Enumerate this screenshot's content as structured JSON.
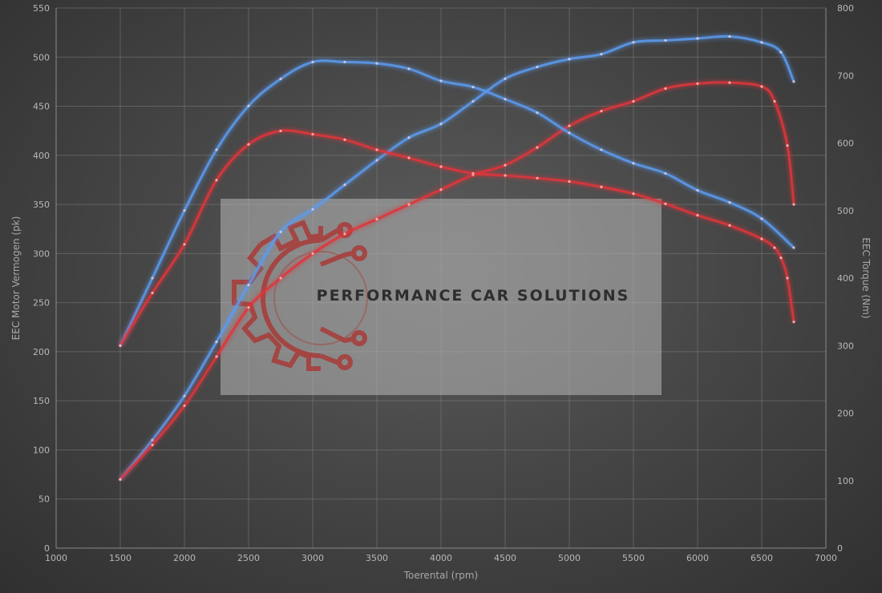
{
  "chart_data": {
    "type": "line",
    "xlabel": "Toerental (rpm)",
    "ylabel": "EEC Motor Vermogen (pk)",
    "y2label": "EEC Torque (Nm)",
    "xlim": [
      1000,
      7000
    ],
    "ylim": [
      0,
      550
    ],
    "y2lim": [
      0,
      800
    ],
    "x_ticks": [
      1000,
      1500,
      2000,
      2500,
      3000,
      3500,
      4000,
      4500,
      5000,
      5500,
      6000,
      6500,
      7000
    ],
    "y_ticks": [
      0,
      50,
      100,
      150,
      200,
      250,
      300,
      350,
      400,
      450,
      500,
      550
    ],
    "y2_ticks": [
      0,
      100,
      200,
      300,
      400,
      500,
      600,
      700,
      800
    ],
    "grid": true,
    "colors": {
      "tuned": "#5b9bf0",
      "stock": "#e0353a"
    },
    "series": [
      {
        "axis": "left",
        "color": "#5b9bf0",
        "x": [
          1500,
          1750,
          2000,
          2250,
          2500,
          2750,
          3000,
          3250,
          3500,
          3750,
          4000,
          4250,
          4500,
          4750,
          5000,
          5250,
          5500,
          5750,
          6000,
          6250,
          6500,
          6650,
          6750
        ],
        "y": [
          70,
          110,
          155,
          210,
          268,
          322,
          345,
          370,
          395,
          418,
          432,
          455,
          478,
          490,
          498,
          503,
          515,
          517,
          519,
          521,
          515,
          505,
          475
        ]
      },
      {
        "axis": "left",
        "color": "#e0353a",
        "x": [
          1500,
          1750,
          2000,
          2250,
          2500,
          2750,
          3000,
          3250,
          3500,
          3750,
          4000,
          4250,
          4500,
          4750,
          5000,
          5250,
          5500,
          5750,
          6000,
          6250,
          6500,
          6600,
          6700,
          6750
        ],
        "y": [
          70,
          105,
          145,
          195,
          245,
          275,
          300,
          320,
          335,
          350,
          365,
          380,
          390,
          408,
          430,
          445,
          455,
          468,
          473,
          474,
          470,
          455,
          410,
          350
        ]
      },
      {
        "axis": "right",
        "color": "#5b9bf0",
        "x": [
          1500,
          1750,
          2000,
          2250,
          2500,
          2750,
          3000,
          3250,
          3500,
          3750,
          4000,
          4250,
          4500,
          4750,
          5000,
          5250,
          5500,
          5750,
          6000,
          6250,
          6500,
          6750
        ],
        "y": [
          300,
          400,
          500,
          590,
          655,
          695,
          720,
          720,
          718,
          710,
          692,
          683,
          665,
          645,
          615,
          590,
          570,
          555,
          530,
          512,
          488,
          445
        ]
      },
      {
        "axis": "right",
        "color": "#e0353a",
        "x": [
          1500,
          1750,
          2000,
          2250,
          2500,
          2750,
          3000,
          3250,
          3500,
          3750,
          4000,
          4250,
          4500,
          4750,
          5000,
          5250,
          5500,
          5750,
          6000,
          6250,
          6500,
          6600,
          6650,
          6700,
          6750
        ],
        "y": [
          300,
          378,
          450,
          545,
          598,
          618,
          613,
          605,
          590,
          578,
          565,
          555,
          552,
          548,
          543,
          535,
          525,
          510,
          493,
          478,
          458,
          445,
          430,
          400,
          335
        ]
      }
    ]
  },
  "watermark": {
    "text": "PERFORMANCE CAR SOLUTIONS",
    "logo": "gear-circuit-logo"
  }
}
